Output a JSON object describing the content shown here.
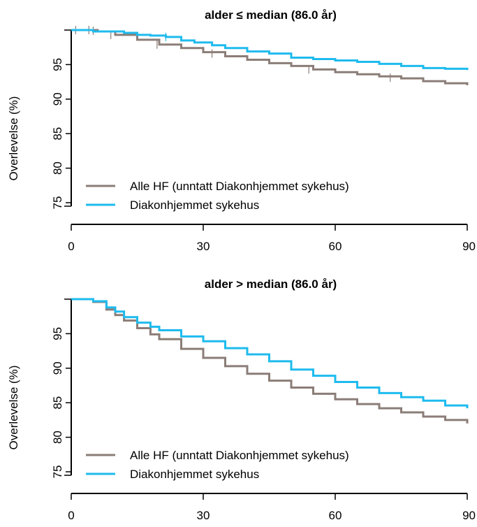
{
  "chart_data": [
    {
      "type": "line",
      "title": "alder ≤ median (86.0 år)",
      "xlabel": "",
      "ylabel": "Overlevelse (%)",
      "xlim": [
        0,
        90
      ],
      "ylim": [
        74,
        100
      ],
      "xticks": [
        0,
        30,
        60,
        90
      ],
      "yticks": [
        75,
        80,
        85,
        90,
        95
      ],
      "legend_position": "bottom-left",
      "series": [
        {
          "name": "Alle HF (unntatt Diakonhjemmet sykehus)",
          "color": "#8b7d77",
          "x": [
            0,
            3,
            6,
            10,
            15,
            20,
            25,
            30,
            35,
            40,
            45,
            50,
            55,
            60,
            65,
            70,
            75,
            80,
            85,
            90
          ],
          "y": [
            100,
            100,
            99.8,
            99.3,
            98.6,
            97.9,
            97.4,
            96.8,
            96.2,
            95.7,
            95.2,
            94.8,
            94.3,
            93.9,
            93.6,
            93.3,
            93.0,
            92.6,
            92.3,
            92.0
          ],
          "censor_x": [
            1,
            4,
            5,
            9,
            19.5,
            32,
            54,
            72.5
          ],
          "censor_y": [
            100,
            100,
            99.9,
            99.3,
            97.9,
            96.6,
            94.3,
            93.1
          ]
        },
        {
          "name": "Diakonhjemmet sykehus",
          "color": "#1ebbee",
          "x": [
            0,
            4,
            5,
            8,
            12,
            15,
            18,
            21.5,
            25,
            28,
            32,
            35,
            40,
            45,
            50,
            55,
            60,
            65,
            70,
            75,
            80,
            85,
            90
          ],
          "y": [
            100,
            100,
            99.8,
            99.8,
            99.6,
            99.3,
            99.2,
            99.0,
            98.5,
            98.2,
            97.8,
            97.4,
            96.9,
            96.6,
            96.0,
            95.8,
            95.6,
            95.4,
            95.1,
            94.8,
            94.5,
            94.4,
            94.2
          ],
          "censor_x": [
            21.5
          ],
          "censor_y": [
            99.0
          ]
        }
      ]
    },
    {
      "type": "line",
      "title": "alder > median (86.0 år)",
      "xlabel": "",
      "ylabel": "Overlevelse (%)",
      "xlim": [
        0,
        90
      ],
      "ylim": [
        74,
        100
      ],
      "xticks": [
        0,
        30,
        60,
        90
      ],
      "yticks": [
        75,
        80,
        85,
        90,
        95
      ],
      "legend_position": "bottom-left",
      "series": [
        {
          "name": "Alle HF (unntatt Diakonhjemmet sykehus)",
          "color": "#8b7d77",
          "x": [
            0,
            3,
            5,
            8,
            10,
            12,
            15,
            18,
            20,
            25,
            30,
            35,
            40,
            45,
            50,
            55,
            60,
            65,
            70,
            75,
            80,
            85,
            90
          ],
          "y": [
            100,
            100,
            99.6,
            98.5,
            97.7,
            96.9,
            95.8,
            94.9,
            94.2,
            92.8,
            91.5,
            90.3,
            89.2,
            88.2,
            87.2,
            86.3,
            85.5,
            84.8,
            84.2,
            83.6,
            83.0,
            82.5,
            82.0
          ],
          "censor_x": [],
          "censor_y": []
        },
        {
          "name": "Diakonhjemmet sykehus",
          "color": "#1ebbee",
          "x": [
            0,
            3,
            5,
            8,
            10,
            12,
            15,
            18,
            20,
            25,
            30,
            35,
            40,
            45,
            50,
            55,
            60,
            65,
            70,
            75,
            80,
            85,
            90
          ],
          "y": [
            100,
            100,
            99.7,
            98.8,
            98.2,
            97.4,
            96.6,
            96.0,
            95.5,
            94.6,
            93.9,
            92.9,
            92.0,
            91.0,
            89.8,
            88.9,
            88.0,
            87.2,
            86.4,
            85.8,
            85.3,
            84.6,
            84.2
          ],
          "censor_x": [],
          "censor_y": []
        }
      ]
    }
  ]
}
